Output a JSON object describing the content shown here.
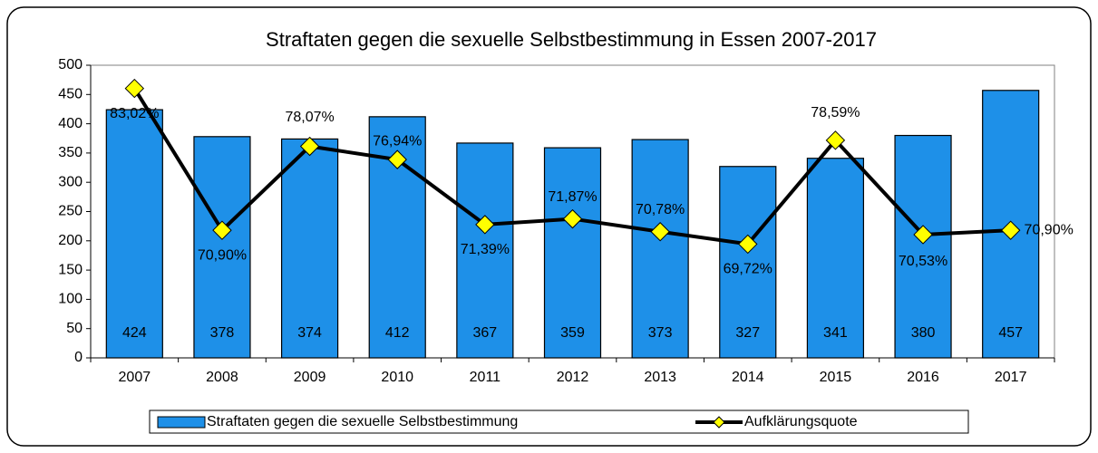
{
  "chart_data": {
    "type": "bar-line",
    "title": "Straftaten gegen die sexuelle Selbstbestimmung in Essen 2007-2017",
    "categories": [
      "2007",
      "2008",
      "2009",
      "2010",
      "2011",
      "2012",
      "2013",
      "2014",
      "2015",
      "2016",
      "2017"
    ],
    "series": [
      {
        "name": "Straftaten gegen die sexuelle Selbstbestimmung",
        "type": "bar",
        "color": "#1e90e8",
        "values": [
          424,
          378,
          374,
          412,
          367,
          359,
          373,
          327,
          341,
          380,
          457
        ]
      },
      {
        "name": "Aufklärungsquote",
        "type": "line",
        "axis": "y2",
        "color": "#000000",
        "marker_color": "#ffff00",
        "values": [
          83.02,
          70.9,
          78.07,
          76.94,
          71.39,
          71.87,
          70.78,
          69.72,
          78.59,
          70.53,
          70.9
        ],
        "value_labels": [
          "83,02%",
          "70,90%",
          "78,07%",
          "76,94%",
          "71,39%",
          "71,87%",
          "70,78%",
          "69,72%",
          "78,59%",
          "70,53%",
          "70,90%"
        ]
      }
    ],
    "ylim": [
      0,
      500
    ],
    "yticks": [
      0,
      50,
      100,
      150,
      200,
      250,
      300,
      350,
      400,
      450,
      500
    ],
    "y2lim": [
      60,
      85
    ],
    "legend": "bottom"
  }
}
